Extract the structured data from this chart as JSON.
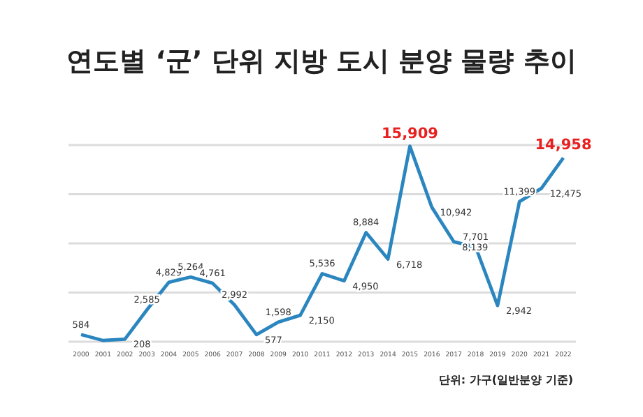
{
  "chart_data": {
    "type": "line",
    "title": "연도별 ‘군’ 단위 지방 도시 분양 물량 추이",
    "categories": [
      "2000",
      "2001",
      "2002",
      "2003",
      "2004",
      "2005",
      "2006",
      "2007",
      "2008",
      "2009",
      "2010",
      "2011",
      "2012",
      "2013",
      "2014",
      "2015",
      "2016",
      "2017",
      "2018",
      "2019",
      "2020",
      "2021",
      "2022"
    ],
    "series": [
      {
        "color": "#2b86c0",
        "values": [
          584,
          100,
          208,
          2585,
          4829,
          5264,
          4761,
          2992,
          577,
          1598,
          2150,
          5536,
          4950,
          8884,
          6718,
          15909,
          10942,
          8139,
          7701,
          2942,
          11399,
          12475,
          14958
        ],
        "value_labels": [
          "584",
          null,
          "208",
          "2,585",
          "4,829",
          "5,264",
          "4,761",
          "2,992",
          "577",
          "1,598",
          "2,150",
          "5,536",
          "4,950",
          "8,884",
          "6,718",
          null,
          "10,942",
          "8,139",
          "7,701",
          "2,942",
          "11,399",
          "12,475",
          null
        ]
      }
    ],
    "ylim": [
      0,
      16000
    ],
    "yticks": [
      {
        "value": 0,
        "label": null
      },
      {
        "value": 4000,
        "label": null
      },
      {
        "value": 8000,
        "label": null
      },
      {
        "value": 12000,
        "label": null
      },
      {
        "value": 16000,
        "label": null
      }
    ],
    "grid": "y",
    "tick_labels": "x",
    "marker": "none",
    "line_style": "solid",
    "annotations": [
      {
        "text": "15,909",
        "x": "2015",
        "y": 15909
      },
      {
        "text": "14,958",
        "x": "2022",
        "y": 14958
      },
      "단위: 가구(일반분양 기준)"
    ]
  }
}
